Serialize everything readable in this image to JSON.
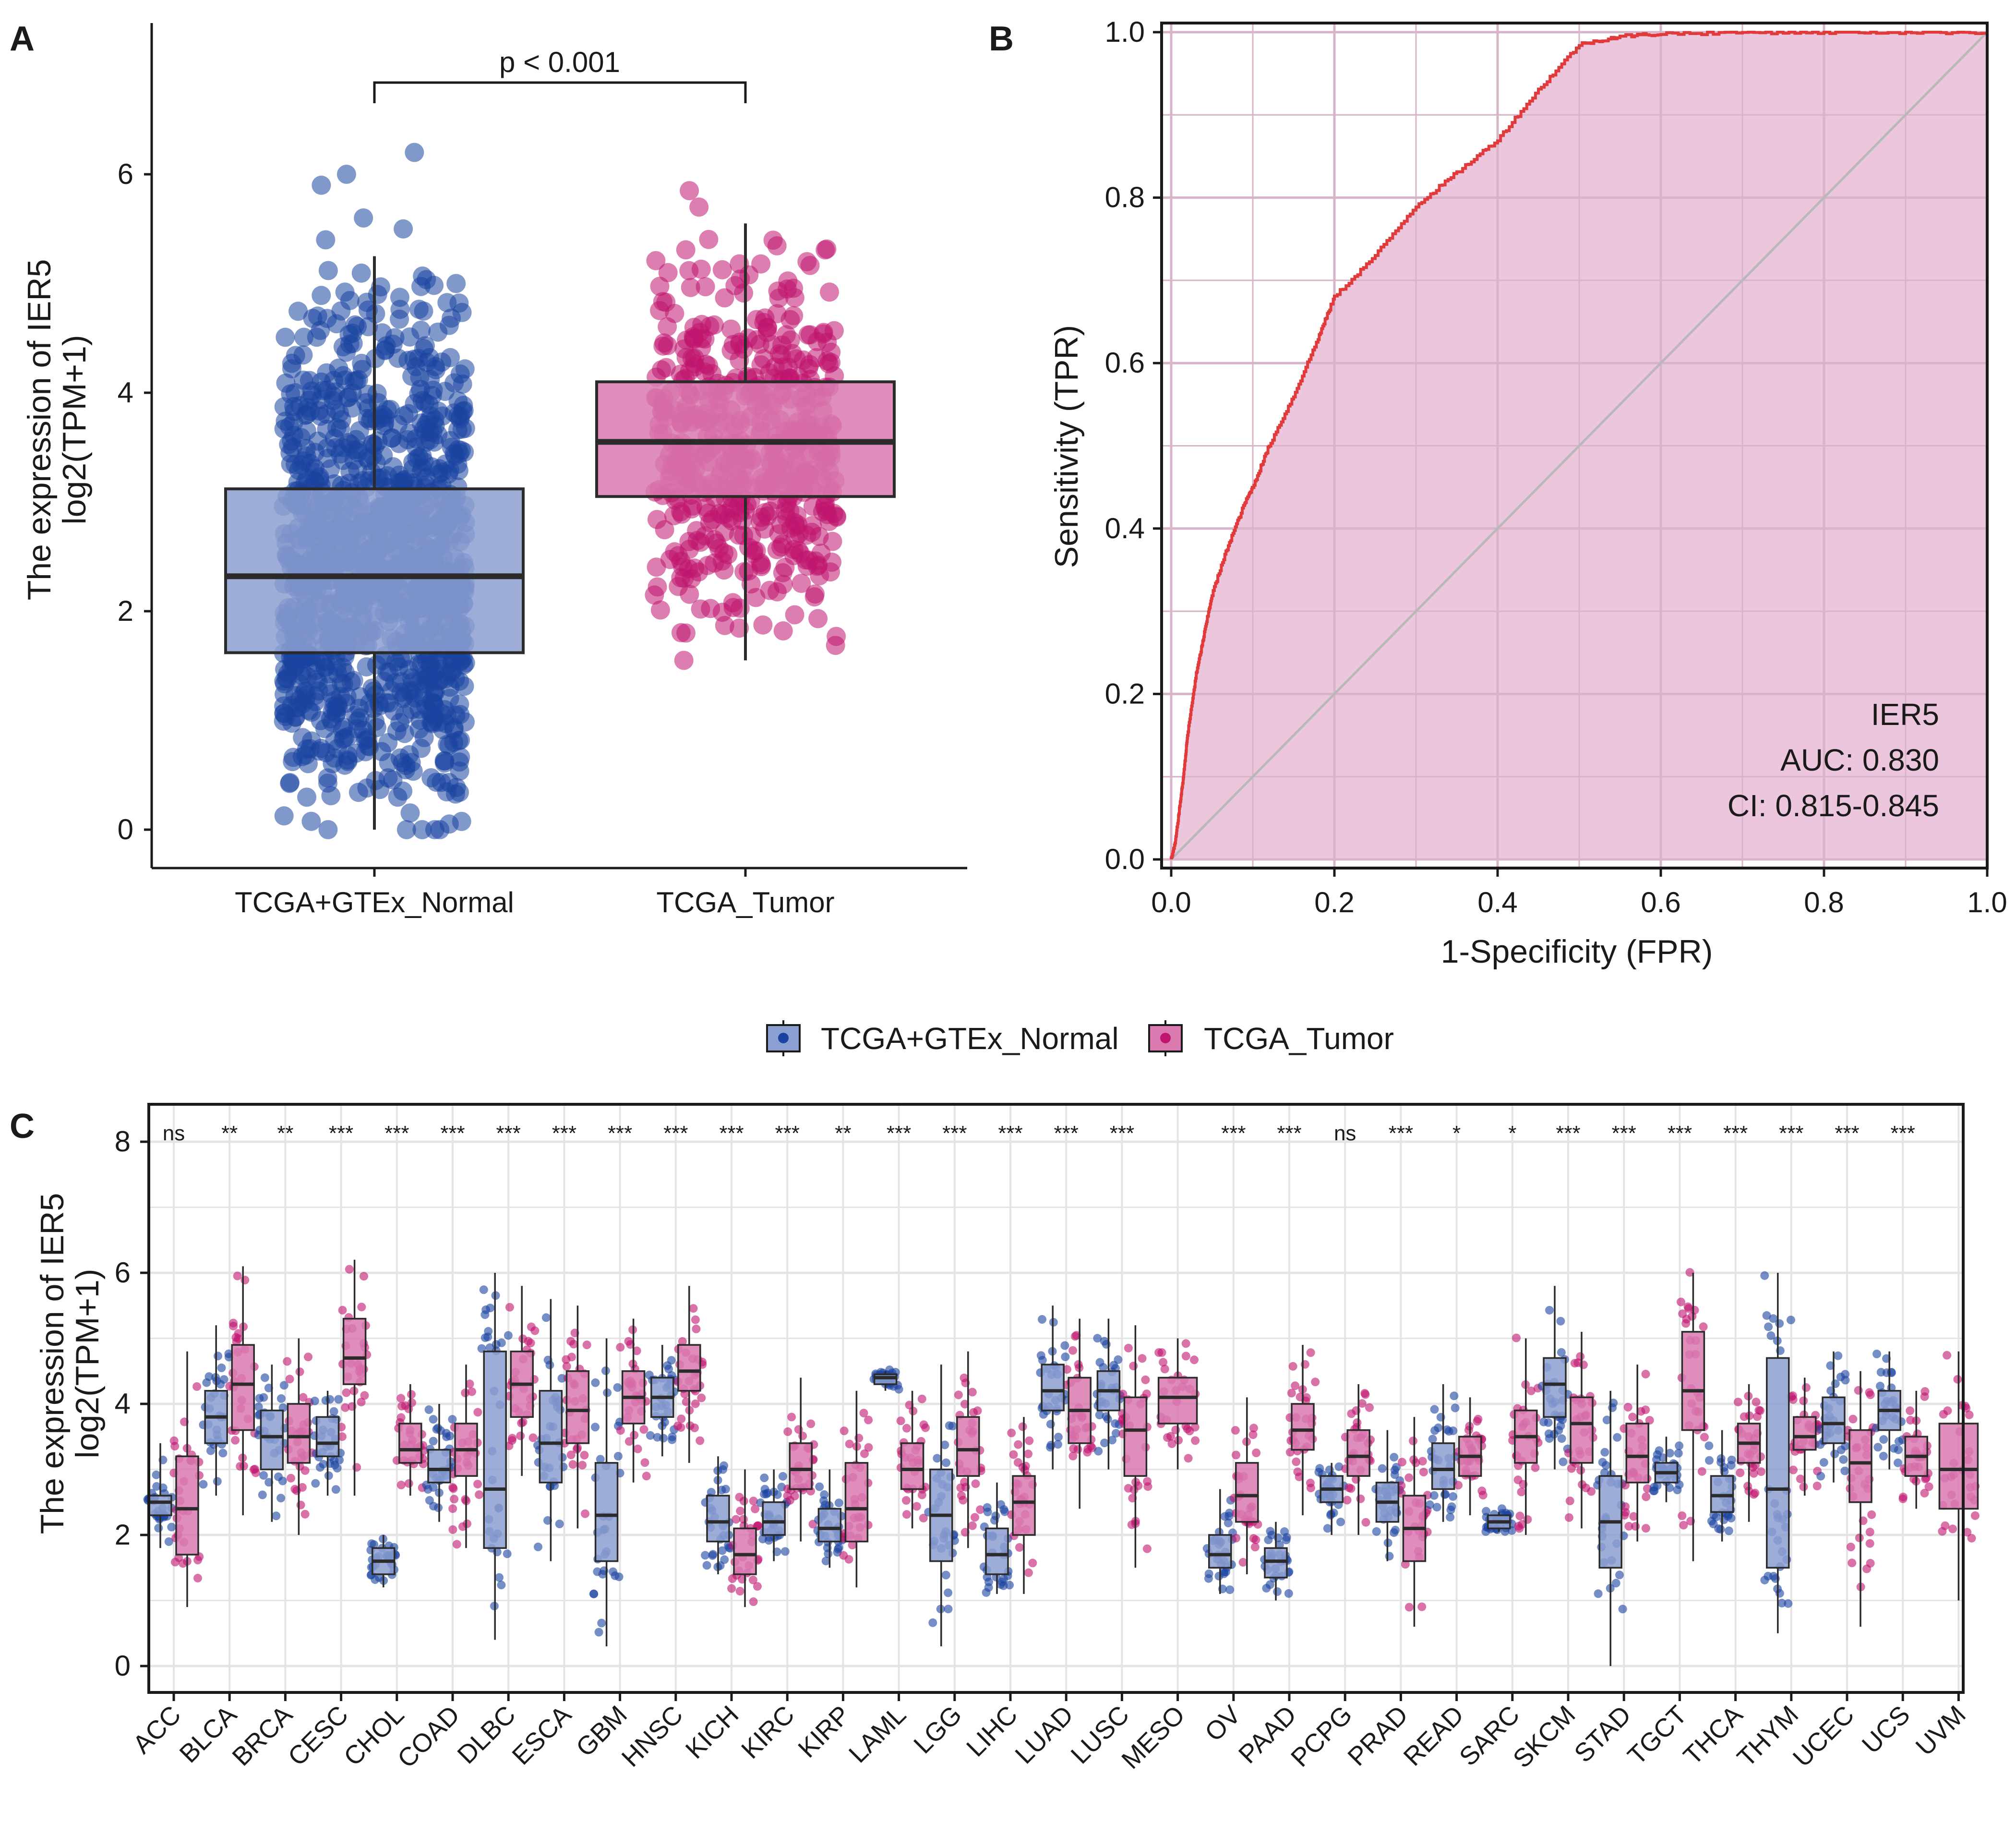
{
  "colors": {
    "normal_point": "#1a43a0",
    "normal_box": "#8c9fd1",
    "tumor_point": "#c0146e",
    "tumor_box": "#d97ab0",
    "roc_line": "#e03a3a",
    "roc_fill": "#ecc6dd",
    "diagonal": "#b8b8b8",
    "grid": "#e4e4e4"
  },
  "chart_data": [
    {
      "panel": "A",
      "type": "box",
      "ylabel_line1": "The expression of IER5",
      "ylabel_line2": "log2(TPM+1)",
      "ylim": [
        -0.35,
        7.3
      ],
      "yticks": [
        0,
        2,
        4,
        6
      ],
      "annotation": "p < 0.001",
      "categories": [
        "TCGA+GTEx_Normal",
        "TCGA_Tumor"
      ],
      "boxes": [
        {
          "group": "TCGA+GTEx_Normal",
          "min": 0,
          "q1": 1.62,
          "median": 2.32,
          "q3": 3.12,
          "max": 5.25
        },
        {
          "group": "TCGA_Tumor",
          "min": 1.55,
          "q1": 3.05,
          "median": 3.55,
          "q3": 4.1,
          "max": 5.55
        }
      ]
    },
    {
      "panel": "B",
      "type": "line",
      "xlabel": "1-Specificity (FPR)",
      "ylabel": "Sensitivity (TPR)",
      "xlim": [
        0,
        1
      ],
      "ylim": [
        0,
        1
      ],
      "ticks": [
        "0.0",
        "0.2",
        "0.4",
        "0.6",
        "0.8",
        "1.0"
      ],
      "gene": "IER5",
      "auc_text": "AUC: 0.830",
      "ci_text": "CI: 0.815-0.845",
      "fpr": [
        0,
        0.005,
        0.01,
        0.015,
        0.02,
        0.03,
        0.04,
        0.05,
        0.07,
        0.09,
        0.1,
        0.12,
        0.15,
        0.18,
        0.2,
        0.25,
        0.3,
        0.35,
        0.4,
        0.45,
        0.5,
        0.55,
        0.6,
        0.7,
        0.8,
        0.9,
        1.0
      ],
      "tpr": [
        0,
        0.02,
        0.06,
        0.1,
        0.15,
        0.22,
        0.27,
        0.32,
        0.38,
        0.43,
        0.45,
        0.5,
        0.56,
        0.63,
        0.68,
        0.73,
        0.79,
        0.83,
        0.87,
        0.93,
        0.985,
        0.995,
        0.998,
        1.0,
        1.0,
        1.0,
        1.0
      ]
    },
    {
      "panel": "C",
      "type": "box",
      "ylabel_line1": "The expression of IER5",
      "ylabel_line2": "log2(TPM+1)",
      "ylim": [
        -0.5,
        8.4
      ],
      "yticks": [
        0,
        2,
        4,
        6,
        8
      ],
      "legend": [
        "TCGA+GTEx_Normal",
        "TCGA_Tumor"
      ],
      "categories": [
        "ACC",
        "BLCA",
        "BRCA",
        "CESC",
        "CHOL",
        "COAD",
        "DLBC",
        "ESCA",
        "GBM",
        "HNSC",
        "KICH",
        "KIRC",
        "KIRP",
        "LAML",
        "LGG",
        "LIHC",
        "LUAD",
        "LUSC",
        "MESO",
        "OV",
        "PAAD",
        "PCPG",
        "PRAD",
        "READ",
        "SARC",
        "SKCM",
        "STAD",
        "TGCT",
        "THCA",
        "THYM",
        "UCEC",
        "UCS",
        "UVM"
      ],
      "significance": [
        "ns",
        "**",
        "**",
        "***",
        "***",
        "***",
        "***",
        "***",
        "***",
        "***",
        "***",
        "***",
        "**",
        "***",
        "***",
        "***",
        "***",
        "***",
        "",
        "***",
        "***",
        "ns",
        "***",
        "*",
        "*",
        "***",
        "***",
        "***",
        "***",
        "***",
        "***",
        "***",
        ""
      ],
      "normal": [
        [
          1.8,
          2.3,
          2.5,
          2.6,
          3.4
        ],
        [
          2.6,
          3.4,
          3.8,
          4.2,
          5.2
        ],
        [
          2.2,
          3.0,
          3.5,
          3.9,
          4.6
        ],
        [
          2.6,
          3.2,
          3.4,
          3.8,
          4.2
        ],
        [
          1.2,
          1.4,
          1.6,
          1.8,
          2.0
        ],
        [
          2.2,
          2.8,
          3.0,
          3.3,
          4.0
        ],
        [
          0.4,
          1.8,
          2.7,
          4.8,
          6.0
        ],
        [
          1.6,
          2.8,
          3.4,
          4.2,
          5.6
        ],
        [
          0.3,
          1.6,
          2.3,
          3.1,
          5.0
        ],
        [
          3.2,
          3.8,
          4.1,
          4.4,
          4.9
        ],
        [
          1.4,
          1.9,
          2.2,
          2.6,
          3.2
        ],
        [
          1.6,
          2.0,
          2.2,
          2.5,
          3.0
        ],
        [
          1.5,
          1.9,
          2.1,
          2.4,
          3.0
        ],
        [
          4.2,
          4.3,
          4.4,
          4.45,
          4.5
        ],
        [
          0.3,
          1.6,
          2.3,
          3.0,
          4.6
        ],
        [
          1.1,
          1.4,
          1.7,
          2.1,
          2.8
        ],
        [
          3.0,
          3.9,
          4.2,
          4.6,
          5.5
        ],
        [
          3.0,
          3.9,
          4.2,
          4.5,
          5.3
        ],
        null,
        [
          1.1,
          1.5,
          1.7,
          2.0,
          2.7
        ],
        [
          1.0,
          1.35,
          1.6,
          1.8,
          2.2
        ],
        [
          2.0,
          2.5,
          2.7,
          2.9,
          3.1
        ],
        [
          1.6,
          2.2,
          2.5,
          2.8,
          3.6
        ],
        [
          2.2,
          2.7,
          3.0,
          3.4,
          4.3
        ],
        [
          2.05,
          2.1,
          2.2,
          2.3,
          2.35
        ],
        [
          3.0,
          3.8,
          4.3,
          4.7,
          5.8
        ],
        [
          0.0,
          1.5,
          2.2,
          2.9,
          4.2
        ],
        [
          2.5,
          2.8,
          2.95,
          3.1,
          3.5
        ],
        [
          1.9,
          2.35,
          2.6,
          2.9,
          3.6
        ],
        [
          0.5,
          1.5,
          2.7,
          4.7,
          6.0
        ],
        [
          2.8,
          3.4,
          3.7,
          4.1,
          4.8
        ],
        [
          3.0,
          3.6,
          3.9,
          4.2,
          4.8
        ],
        null
      ],
      "tumor": [
        [
          0.9,
          1.7,
          2.4,
          3.2,
          4.8
        ],
        [
          2.3,
          3.6,
          4.3,
          4.9,
          6.1
        ],
        [
          2.0,
          3.1,
          3.5,
          4.0,
          5.0
        ],
        [
          2.6,
          4.3,
          4.7,
          5.3,
          6.2
        ],
        [
          2.6,
          3.1,
          3.3,
          3.7,
          4.3
        ],
        [
          1.8,
          2.9,
          3.3,
          3.7,
          4.6
        ],
        [
          2.9,
          3.8,
          4.3,
          4.8,
          5.8
        ],
        [
          2.1,
          3.4,
          3.9,
          4.5,
          5.5
        ],
        [
          2.8,
          3.7,
          4.1,
          4.5,
          5.3
        ],
        [
          3.1,
          4.2,
          4.5,
          4.9,
          5.8
        ],
        [
          0.9,
          1.4,
          1.7,
          2.1,
          3.0
        ],
        [
          1.9,
          2.7,
          3.0,
          3.4,
          4.4
        ],
        [
          1.2,
          1.9,
          2.4,
          3.1,
          4.2
        ],
        [
          2.1,
          2.7,
          3.0,
          3.4,
          4.2
        ],
        [
          1.8,
          2.9,
          3.3,
          3.8,
          4.8
        ],
        [
          1.1,
          2.0,
          2.5,
          2.9,
          3.8
        ],
        [
          2.4,
          3.4,
          3.9,
          4.4,
          5.3
        ],
        [
          1.5,
          2.9,
          3.6,
          4.1,
          5.2
        ],
        [
          3.0,
          3.7,
          4.1,
          4.4,
          5.0
        ],
        [
          1.4,
          2.2,
          2.6,
          3.1,
          4.1
        ],
        [
          2.3,
          3.3,
          3.6,
          4.0,
          4.9
        ],
        [
          2.0,
          2.9,
          3.2,
          3.6,
          4.3
        ],
        [
          0.6,
          1.6,
          2.1,
          2.6,
          3.8
        ],
        [
          2.3,
          2.9,
          3.2,
          3.5,
          4.1
        ],
        [
          2.0,
          3.1,
          3.5,
          3.9,
          5.0
        ],
        [
          2.1,
          3.1,
          3.7,
          4.1,
          5.1
        ],
        [
          1.9,
          2.8,
          3.2,
          3.7,
          4.6
        ],
        [
          1.6,
          3.6,
          4.2,
          5.1,
          6.0
        ],
        [
          2.2,
          3.1,
          3.4,
          3.7,
          4.3
        ],
        [
          2.6,
          3.3,
          3.5,
          3.8,
          4.4
        ],
        [
          0.6,
          2.5,
          3.1,
          3.6,
          4.5
        ],
        [
          2.4,
          2.9,
          3.2,
          3.5,
          4.2
        ],
        [
          1.0,
          2.4,
          3.0,
          3.7,
          4.8
        ]
      ]
    }
  ]
}
